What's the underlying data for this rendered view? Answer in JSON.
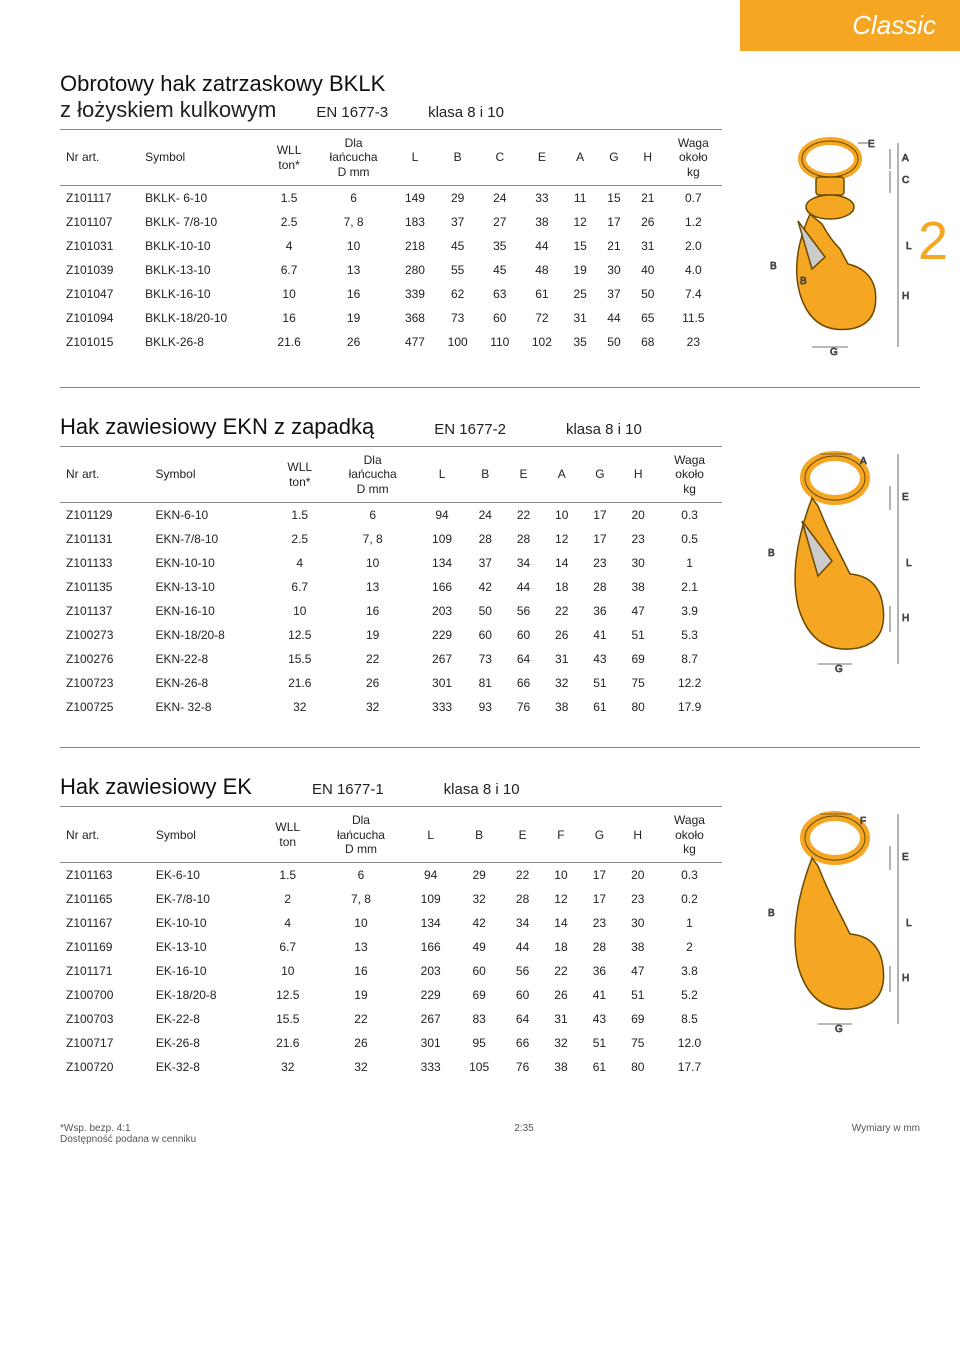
{
  "brand_header": "Classic",
  "chapter_number": "2",
  "footer": {
    "wsp": "*Wsp. bezp. 4:1",
    "avail": "Dostępność podana w cenniku",
    "page": "2:35",
    "dims": "Wymiary w mm"
  },
  "diagram_colors": {
    "hook_fill": "#f5a623",
    "hook_stroke": "#6b4a00",
    "dim_line": "#444"
  },
  "sections": [
    {
      "title_main": "Obrotowy hak zatrzaskowy BKLK",
      "title_sub": "z łożyskiem kulkowym",
      "std": "EN 1677-3",
      "klasa": "klasa 8 i 10",
      "cols": [
        "Nr art.",
        "Symbol",
        "WLL ton*",
        "Dla łańcucha D mm",
        "L",
        "B",
        "C",
        "E",
        "A",
        "G",
        "H",
        "Waga około kg"
      ],
      "rows": [
        [
          "Z101117",
          "BKLK- 6-10",
          "1.5",
          "6",
          "149",
          "29",
          "24",
          "33",
          "11",
          "15",
          "21",
          "0.7"
        ],
        [
          "Z101107",
          "BKLK- 7/8-10",
          "2.5",
          "7, 8",
          "183",
          "37",
          "27",
          "38",
          "12",
          "17",
          "26",
          "1.2"
        ],
        [
          "Z101031",
          "BKLK-10-10",
          "4",
          "10",
          "218",
          "45",
          "35",
          "44",
          "15",
          "21",
          "31",
          "2.0"
        ],
        [
          "Z101039",
          "BKLK-13-10",
          "6.7",
          "13",
          "280",
          "55",
          "45",
          "48",
          "19",
          "30",
          "40",
          "4.0"
        ],
        [
          "Z101047",
          "BKLK-16-10",
          "10",
          "16",
          "339",
          "62",
          "63",
          "61",
          "25",
          "37",
          "50",
          "7.4"
        ],
        [
          "Z101094",
          "BKLK-18/20-10",
          "16",
          "19",
          "368",
          "73",
          "60",
          "72",
          "31",
          "44",
          "65",
          "11.5"
        ],
        [
          "Z101015",
          "BKLK-26-8",
          "21.6",
          "26",
          "477",
          "100",
          "110",
          "102",
          "35",
          "50",
          "68",
          "23"
        ]
      ],
      "dim_labels": [
        "E",
        "A",
        "C",
        "L",
        "B",
        "B",
        "H",
        "G"
      ]
    },
    {
      "title_main": "Hak zawiesiowy EKN z zapadką",
      "std": "EN 1677-2",
      "klasa": "klasa 8 i 10",
      "cols": [
        "Nr art.",
        "Symbol",
        "WLL ton*",
        "Dla łańcucha D mm",
        "L",
        "B",
        "E",
        "A",
        "G",
        "H",
        "Waga około kg"
      ],
      "rows": [
        [
          "Z101129",
          "EKN-6-10",
          "1.5",
          "6",
          "94",
          "24",
          "22",
          "10",
          "17",
          "20",
          "0.3"
        ],
        [
          "Z101131",
          "EKN-7/8-10",
          "2.5",
          "7, 8",
          "109",
          "28",
          "28",
          "12",
          "17",
          "23",
          "0.5"
        ],
        [
          "Z101133",
          "EKN-10-10",
          "4",
          "10",
          "134",
          "37",
          "34",
          "14",
          "23",
          "30",
          "1"
        ],
        [
          "Z101135",
          "EKN-13-10",
          "6.7",
          "13",
          "166",
          "42",
          "44",
          "18",
          "28",
          "38",
          "2.1"
        ],
        [
          "Z101137",
          "EKN-16-10",
          "10",
          "16",
          "203",
          "50",
          "56",
          "22",
          "36",
          "47",
          "3.9"
        ],
        [
          "Z100273",
          "EKN-18/20-8",
          "12.5",
          "19",
          "229",
          "60",
          "60",
          "26",
          "41",
          "51",
          "5.3"
        ],
        [
          "Z100276",
          "EKN-22-8",
          "15.5",
          "22",
          "267",
          "73",
          "64",
          "31",
          "43",
          "69",
          "8.7"
        ],
        [
          "Z100723",
          "EKN-26-8",
          "21.6",
          "26",
          "301",
          "81",
          "66",
          "32",
          "51",
          "75",
          "12.2"
        ],
        [
          "Z100725",
          "EKN- 32-8",
          "32",
          "32",
          "333",
          "93",
          "76",
          "38",
          "61",
          "80",
          "17.9"
        ]
      ],
      "dim_labels": [
        "A",
        "E",
        "B",
        "L",
        "H",
        "G"
      ]
    },
    {
      "title_main": "Hak zawiesiowy EK",
      "std": "EN 1677-1",
      "klasa": "klasa 8 i 10",
      "cols": [
        "Nr art.",
        "Symbol",
        "WLL ton",
        "Dla łańcucha D mm",
        "L",
        "B",
        "E",
        "F",
        "G",
        "H",
        "Waga około kg"
      ],
      "rows": [
        [
          "Z101163",
          "EK-6-10",
          "1.5",
          "6",
          "94",
          "29",
          "22",
          "10",
          "17",
          "20",
          "0.3"
        ],
        [
          "Z101165",
          "EK-7/8-10",
          "2",
          "7, 8",
          "109",
          "32",
          "28",
          "12",
          "17",
          "23",
          "0.2"
        ],
        [
          "Z101167",
          "EK-10-10",
          "4",
          "10",
          "134",
          "42",
          "34",
          "14",
          "23",
          "30",
          "1"
        ],
        [
          "Z101169",
          "EK-13-10",
          "6.7",
          "13",
          "166",
          "49",
          "44",
          "18",
          "28",
          "38",
          "2"
        ],
        [
          "Z101171",
          "EK-16-10",
          "10",
          "16",
          "203",
          "60",
          "56",
          "22",
          "36",
          "47",
          "3.8"
        ],
        [
          "Z100700",
          "EK-18/20-8",
          "12.5",
          "19",
          "229",
          "69",
          "60",
          "26",
          "41",
          "51",
          "5.2"
        ],
        [
          "Z100703",
          "EK-22-8",
          "15.5",
          "22",
          "267",
          "83",
          "64",
          "31",
          "43",
          "69",
          "8.5"
        ],
        [
          "Z100717",
          "EK-26-8",
          "21.6",
          "26",
          "301",
          "95",
          "66",
          "32",
          "51",
          "75",
          "12.0"
        ],
        [
          "Z100720",
          "EK-32-8",
          "32",
          "32",
          "333",
          "105",
          "76",
          "38",
          "61",
          "80",
          "17.7"
        ]
      ],
      "dim_labels": [
        "F",
        "E",
        "B",
        "L",
        "H",
        "G"
      ]
    }
  ]
}
